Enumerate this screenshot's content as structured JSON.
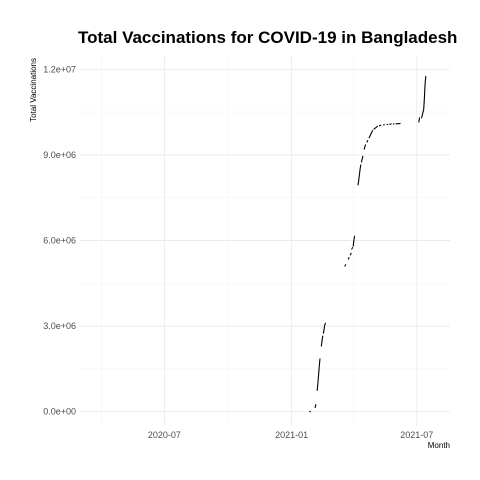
{
  "chart_data": {
    "type": "line",
    "title": "Total Vaccinations for COVID-19 in Bangladesh",
    "xlabel": "Month",
    "ylabel": "Total Vaccinations",
    "xlim": [
      "2020-03-01",
      "2021-08-18"
    ],
    "ylim": [
      -500000,
      12500000
    ],
    "x_ticks": [
      {
        "value": "2020-07-01",
        "label": "2020-07"
      },
      {
        "value": "2021-01-01",
        "label": "2021-01"
      },
      {
        "value": "2021-07-01",
        "label": "2021-07"
      }
    ],
    "x_minor_ticks": [
      "2020-04-01",
      "2020-10-01",
      "2021-04-01"
    ],
    "y_ticks": [
      {
        "value": 0,
        "label": "0.0e+00"
      },
      {
        "value": 3000000,
        "label": "3.0e+06"
      },
      {
        "value": 6000000,
        "label": "6.0e+06"
      },
      {
        "value": 9000000,
        "label": "9.0e+06"
      },
      {
        "value": 12000000,
        "label": "1.2e+07"
      }
    ],
    "y_minor_ticks": [
      1500000,
      4500000,
      7500000,
      10500000
    ],
    "grid": true,
    "series": [
      {
        "segments": [
          [
            [
              "2021-01-27",
              0
            ],
            [
              "2021-01-28",
              10000
            ]
          ],
          [
            [
              "2021-02-04",
              150000
            ],
            [
              "2021-02-05",
              250000
            ]
          ],
          [
            [
              "2021-02-07",
              750000
            ],
            [
              "2021-02-08",
              1000000
            ],
            [
              "2021-02-09",
              1300000
            ],
            [
              "2021-02-10",
              1600000
            ],
            [
              "2021-02-11",
              1850000
            ]
          ],
          [
            [
              "2021-02-13",
              2300000
            ],
            [
              "2021-02-14",
              2500000
            ],
            [
              "2021-02-15",
              2650000
            ]
          ],
          [
            [
              "2021-02-16",
              2750000
            ],
            [
              "2021-02-17",
              2900000
            ],
            [
              "2021-02-18",
              3050000
            ],
            [
              "2021-02-19",
              3100000
            ]
          ],
          [
            [
              "2021-03-19",
              5100000
            ],
            [
              "2021-03-20",
              5150000
            ]
          ],
          [
            [
              "2021-03-24",
              5350000
            ],
            [
              "2021-03-25",
              5400000
            ]
          ],
          [
            [
              "2021-03-27",
              5500000
            ],
            [
              "2021-03-28",
              5550000
            ]
          ],
          [
            [
              "2021-03-29",
              5700000
            ],
            [
              "2021-03-30",
              5750000
            ]
          ],
          [
            [
              "2021-03-31",
              5800000
            ],
            [
              "2021-04-01",
              6000000
            ],
            [
              "2021-04-02",
              6150000
            ]
          ],
          [
            [
              "2021-04-07",
              7950000
            ],
            [
              "2021-04-08",
              8100000
            ],
            [
              "2021-04-09",
              8300000
            ],
            [
              "2021-04-10",
              8500000
            ],
            [
              "2021-04-11",
              8650000
            ]
          ],
          [
            [
              "2021-04-12",
              8750000
            ],
            [
              "2021-04-13",
              8850000
            ],
            [
              "2021-04-14",
              8950000
            ]
          ],
          [
            [
              "2021-04-16",
              9200000
            ],
            [
              "2021-04-17",
              9300000
            ],
            [
              "2021-04-18",
              9350000
            ]
          ],
          [
            [
              "2021-04-20",
              9450000
            ],
            [
              "2021-04-21",
              9500000
            ]
          ],
          [
            [
              "2021-04-23",
              9600000
            ],
            [
              "2021-04-24",
              9650000
            ],
            [
              "2021-04-25",
              9700000
            ],
            [
              "2021-04-26",
              9750000
            ],
            [
              "2021-04-27",
              9800000
            ],
            [
              "2021-04-28",
              9850000
            ]
          ],
          [
            [
              "2021-04-30",
              9900000
            ],
            [
              "2021-05-01",
              9920000
            ],
            [
              "2021-05-02",
              9940000
            ],
            [
              "2021-05-03",
              9960000
            ],
            [
              "2021-05-04",
              9980000
            ],
            [
              "2021-05-05",
              10000000
            ]
          ],
          [
            [
              "2021-05-08",
              10020000
            ],
            [
              "2021-05-09",
              10030000
            ],
            [
              "2021-05-10",
              10040000
            ]
          ],
          [
            [
              "2021-05-14",
              10050000
            ],
            [
              "2021-05-15",
              10055000
            ]
          ],
          [
            [
              "2021-05-19",
              10065000
            ],
            [
              "2021-05-20",
              10070000
            ]
          ],
          [
            [
              "2021-05-23",
              10075000
            ],
            [
              "2021-05-24",
              10080000
            ],
            [
              "2021-05-25",
              10082000
            ]
          ],
          [
            [
              "2021-05-28",
              10085000
            ],
            [
              "2021-05-29",
              10086000
            ]
          ],
          [
            [
              "2021-06-01",
              10088000
            ],
            [
              "2021-06-02",
              10090000
            ],
            [
              "2021-06-03",
              10092000
            ],
            [
              "2021-06-04",
              10094000
            ],
            [
              "2021-06-05",
              10096000
            ],
            [
              "2021-06-06",
              10098000
            ],
            [
              "2021-06-07",
              10100000
            ]
          ],
          [
            [
              "2021-07-04",
              10150000
            ],
            [
              "2021-07-05",
              10300000
            ]
          ],
          [
            [
              "2021-07-08",
              10300000
            ],
            [
              "2021-07-09",
              10400000
            ],
            [
              "2021-07-10",
              10500000
            ],
            [
              "2021-07-11",
              10600000
            ],
            [
              "2021-07-12",
              11000000
            ],
            [
              "2021-07-13",
              11500000
            ],
            [
              "2021-07-14",
              11750000
            ]
          ]
        ]
      }
    ]
  }
}
